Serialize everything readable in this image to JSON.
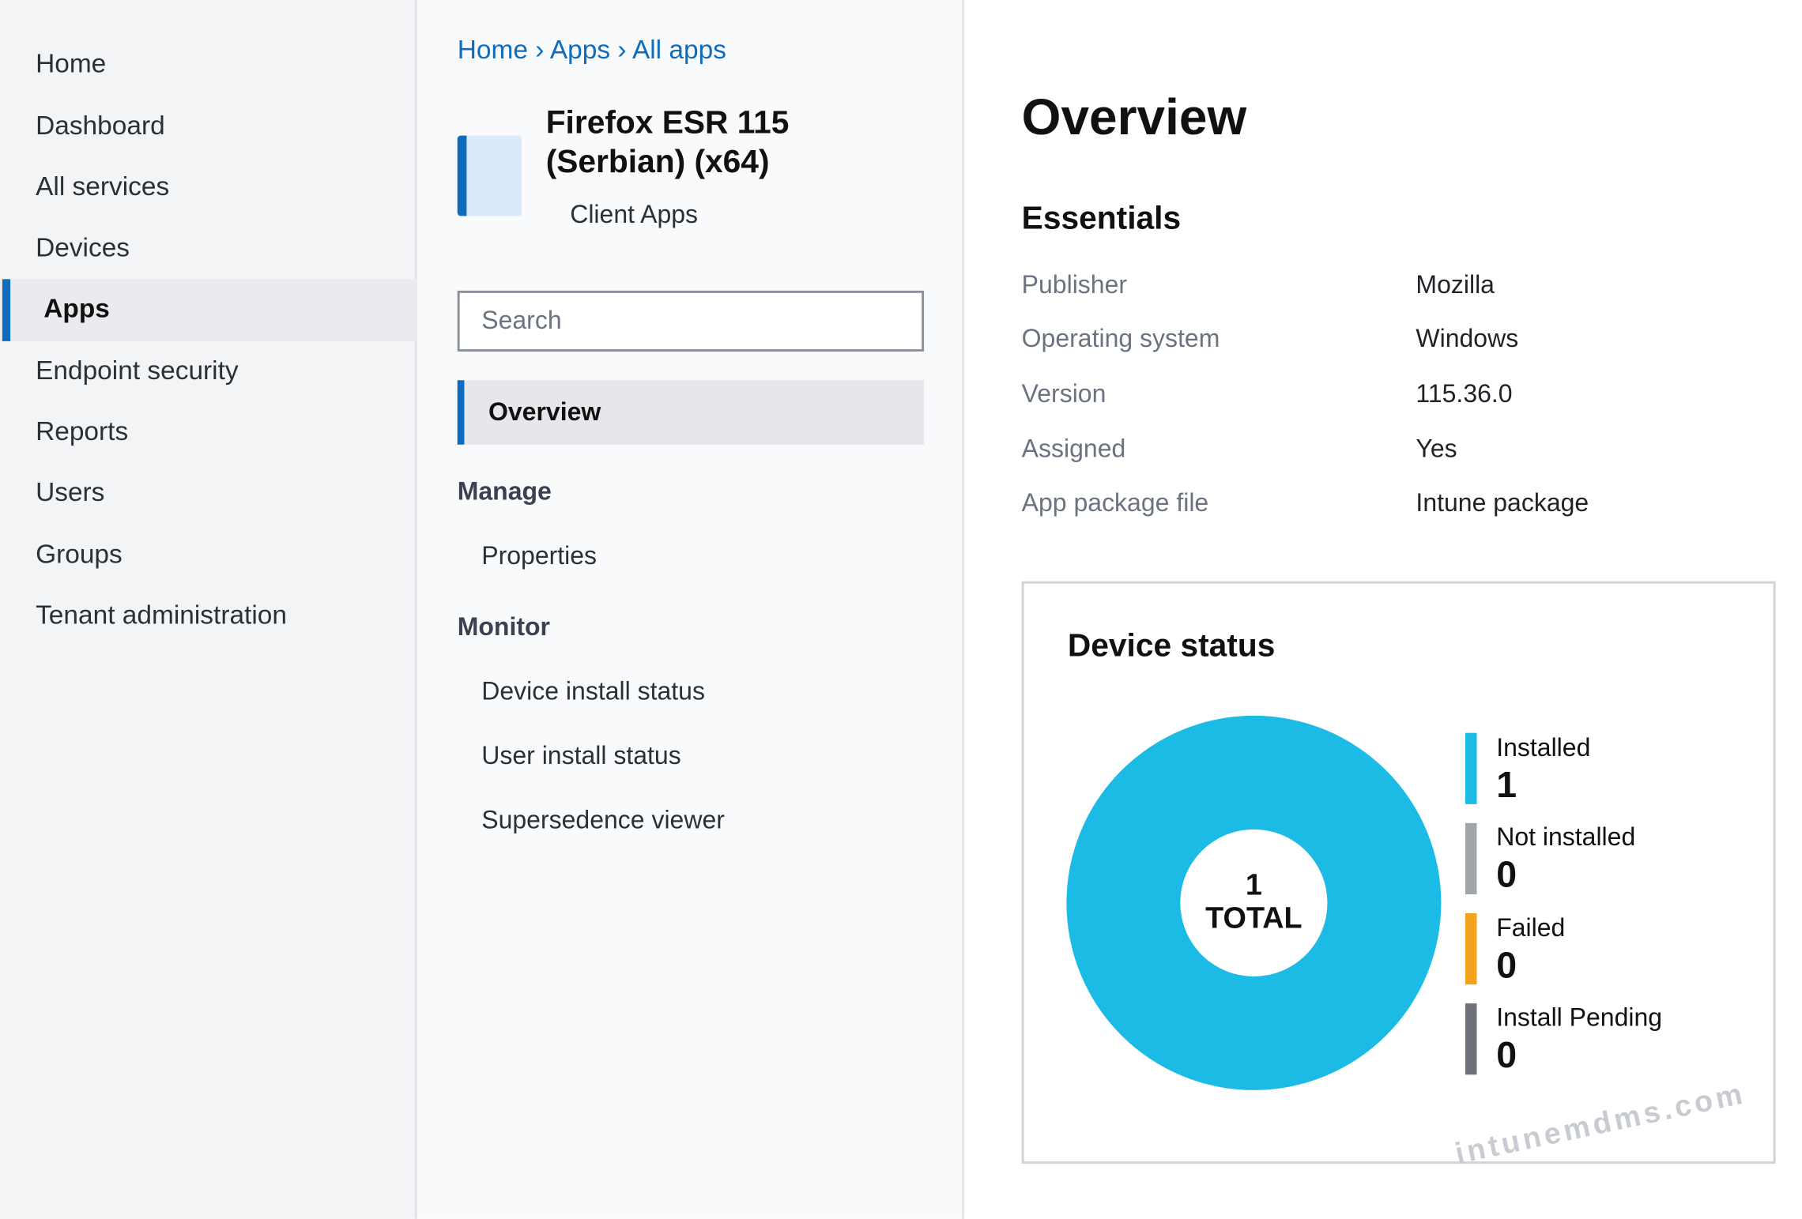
{
  "nav": {
    "items": [
      "Home",
      "Dashboard",
      "All services",
      "Devices",
      "Apps",
      "Endpoint security",
      "Reports",
      "Users",
      "Groups",
      "Tenant administration"
    ],
    "active": 4
  },
  "breadcrumb": {
    "items": [
      "Home",
      "Apps",
      "All apps"
    ],
    "separator": "›"
  },
  "app": {
    "title": "Firefox ESR 115 (Serbian) (x64)",
    "subtitle": "Client Apps"
  },
  "search": {
    "placeholder": "Search"
  },
  "menu": {
    "overview": "Overview",
    "sections": [
      {
        "heading": "Manage",
        "items": [
          "Properties"
        ]
      },
      {
        "heading": "Monitor",
        "items": [
          "Device install status",
          "User install status",
          "Supersedence viewer"
        ]
      }
    ]
  },
  "main": {
    "title": "Overview",
    "essentials": {
      "heading": "Essentials",
      "rows": [
        {
          "label": "Publisher",
          "value": "Mozilla"
        },
        {
          "label": "Operating system",
          "value": "Windows"
        },
        {
          "label": "Version",
          "value": "115.36.0"
        },
        {
          "label": "Assigned",
          "value": "Yes"
        },
        {
          "label": "App package file",
          "value": "Intune package"
        }
      ]
    }
  },
  "chart_data": {
    "type": "donut",
    "title": "Device status",
    "categories": [
      "Installed",
      "Not installed",
      "Failed",
      "Install Pending"
    ],
    "values": [
      1,
      0,
      0,
      0
    ],
    "colors": [
      "#1bbbe5",
      "#a2a4ab",
      "#f4a11c",
      "#6e717c"
    ],
    "total": 1,
    "total_label": "TOTAL"
  },
  "watermark": "intunemdms.com"
}
